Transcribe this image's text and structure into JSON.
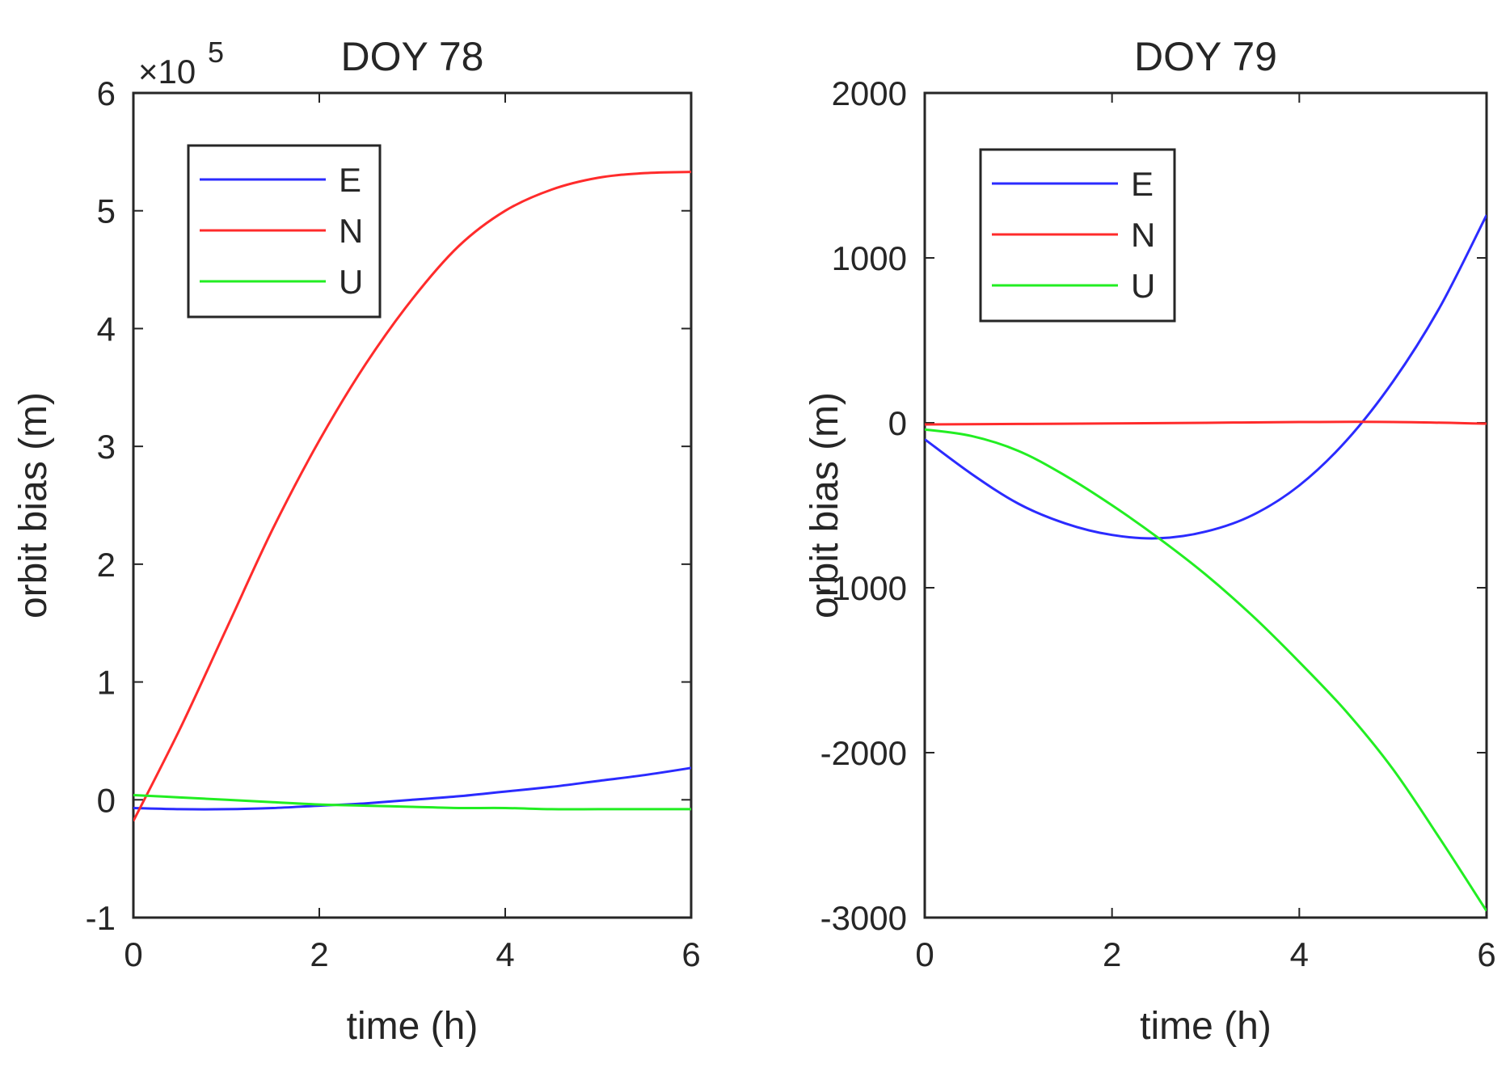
{
  "chart_data": [
    {
      "type": "line",
      "title": "DOY 78",
      "xlabel": "time (h)",
      "ylabel": "orbit bias (m)",
      "xlim": [
        0,
        6
      ],
      "ylim": [
        -1,
        6
      ],
      "y_scale_label": "×10",
      "y_scale_exponent": "5",
      "xticks": [
        "0",
        "2",
        "4",
        "6"
      ],
      "yticks": [
        "-1",
        "0",
        "1",
        "2",
        "3",
        "4",
        "5",
        "6"
      ],
      "legend_position": "top-left",
      "series": [
        {
          "name": "E",
          "color": "#2b2bff",
          "x": [
            0,
            0.5,
            1,
            1.5,
            2,
            2.5,
            3,
            3.5,
            4,
            4.5,
            5,
            5.5,
            6
          ],
          "y": [
            -0.07,
            -0.08,
            -0.08,
            -0.07,
            -0.05,
            -0.03,
            0.0,
            0.03,
            0.07,
            0.11,
            0.16,
            0.21,
            0.27
          ]
        },
        {
          "name": "N",
          "color": "#ff2b2b",
          "x": [
            0,
            0.5,
            1,
            1.5,
            2,
            2.5,
            3,
            3.5,
            4,
            4.5,
            5,
            5.5,
            6
          ],
          "y": [
            -0.18,
            0.6,
            1.45,
            2.3,
            3.05,
            3.7,
            4.25,
            4.7,
            5.0,
            5.18,
            5.28,
            5.32,
            5.33
          ]
        },
        {
          "name": "U",
          "color": "#22ee22",
          "x": [
            0,
            0.5,
            1,
            1.5,
            2,
            2.5,
            3,
            3.5,
            4,
            4.5,
            5,
            5.5,
            6
          ],
          "y": [
            0.04,
            0.02,
            0.0,
            -0.02,
            -0.04,
            -0.05,
            -0.06,
            -0.07,
            -0.07,
            -0.08,
            -0.08,
            -0.08,
            -0.08
          ]
        }
      ]
    },
    {
      "type": "line",
      "title": "DOY 79",
      "xlabel": "time (h)",
      "ylabel": "orbit bias (m)",
      "xlim": [
        0,
        6
      ],
      "ylim": [
        -3000,
        2000
      ],
      "xticks": [
        "0",
        "2",
        "4",
        "6"
      ],
      "yticks": [
        "-3000",
        "-2000",
        "-1000",
        "0",
        "1000",
        "2000"
      ],
      "legend_position": "top-left",
      "series": [
        {
          "name": "E",
          "color": "#2b2bff",
          "x": [
            0,
            0.5,
            1,
            1.5,
            2,
            2.5,
            3,
            3.5,
            4,
            4.5,
            5,
            5.5,
            6
          ],
          "y": [
            -100,
            -310,
            -490,
            -610,
            -680,
            -700,
            -660,
            -560,
            -380,
            -110,
            250,
            700,
            1260
          ]
        },
        {
          "name": "N",
          "color": "#ff2b2b",
          "x": [
            0,
            1,
            2,
            3,
            4,
            5,
            6
          ],
          "y": [
            -10,
            -7,
            -4,
            0,
            5,
            5,
            -5
          ]
        },
        {
          "name": "U",
          "color": "#22ee22",
          "x": [
            0,
            0.5,
            1,
            1.5,
            2,
            2.5,
            3,
            3.5,
            4,
            4.5,
            5,
            5.5,
            6
          ],
          "y": [
            -40,
            -80,
            -170,
            -320,
            -500,
            -700,
            -920,
            -1170,
            -1450,
            -1750,
            -2100,
            -2520,
            -2960
          ]
        }
      ]
    }
  ]
}
